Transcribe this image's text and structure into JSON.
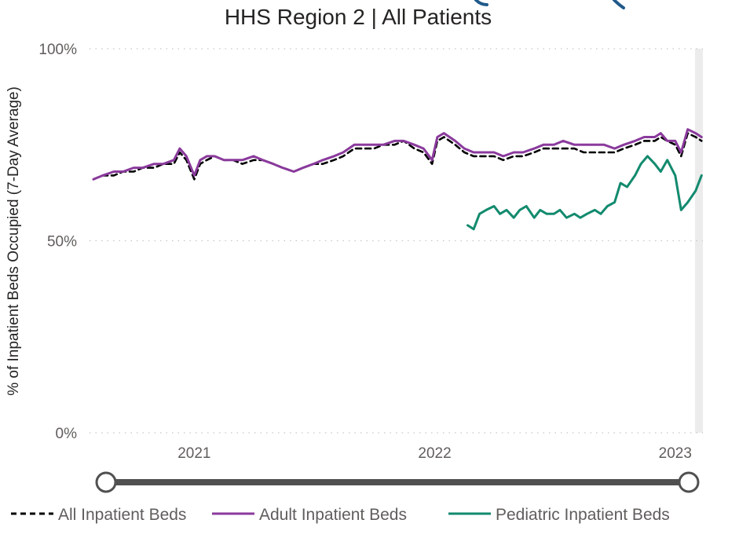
{
  "chart_data": {
    "type": "line",
    "title": "HHS Region 2 | All Patients",
    "ylabel": "% of Inpatient Beds Occupied (7-Day Average)",
    "xlabel": "",
    "ylim": [
      0,
      100
    ],
    "y_ticks": [
      {
        "value": 0,
        "label": "0%"
      },
      {
        "value": 50,
        "label": "50%"
      },
      {
        "value": 100,
        "label": "100%"
      }
    ],
    "x_range": [
      "2020-07-26",
      "2023-02-12"
    ],
    "x_ticks": [
      {
        "value": "2021-01-01",
        "label": "2021"
      },
      {
        "value": "2022-01-01",
        "label": "2022"
      },
      {
        "value": "2023-01-01",
        "label": "2023"
      }
    ],
    "highlight_band": [
      "2023-01-31",
      "2023-02-12"
    ],
    "grid": true,
    "legend_position": "bottom",
    "series": [
      {
        "name": "All Inpatient Beds",
        "color": "#000000",
        "style": "dashed",
        "x": [
          "2020-08-01",
          "2020-08-15",
          "2020-09-01",
          "2020-09-15",
          "2020-10-01",
          "2020-10-15",
          "2020-11-01",
          "2020-11-15",
          "2020-12-01",
          "2020-12-10",
          "2020-12-20",
          "2021-01-01",
          "2021-01-10",
          "2021-01-20",
          "2021-02-01",
          "2021-02-15",
          "2021-03-01",
          "2021-03-15",
          "2021-04-01",
          "2021-04-15",
          "2021-05-01",
          "2021-05-15",
          "2021-06-01",
          "2021-06-15",
          "2021-07-01",
          "2021-07-15",
          "2021-08-01",
          "2021-08-15",
          "2021-09-01",
          "2021-09-15",
          "2021-10-01",
          "2021-10-15",
          "2021-11-01",
          "2021-11-15",
          "2021-12-01",
          "2021-12-15",
          "2021-12-28",
          "2022-01-05",
          "2022-01-15",
          "2022-02-01",
          "2022-02-15",
          "2022-03-01",
          "2022-03-15",
          "2022-04-01",
          "2022-04-15",
          "2022-05-01",
          "2022-05-15",
          "2022-06-01",
          "2022-06-15",
          "2022-07-01",
          "2022-07-15",
          "2022-08-01",
          "2022-08-15",
          "2022-09-01",
          "2022-09-15",
          "2022-10-01",
          "2022-10-15",
          "2022-11-01",
          "2022-11-15",
          "2022-12-01",
          "2022-12-10",
          "2022-12-20",
          "2023-01-01",
          "2023-01-10",
          "2023-01-20",
          "2023-02-01",
          "2023-02-10"
        ],
        "y": [
          66,
          67,
          67,
          68,
          68,
          69,
          69,
          70,
          70,
          73,
          71,
          66,
          70,
          71,
          72,
          71,
          71,
          70,
          71,
          71,
          70,
          69,
          68,
          69,
          70,
          70,
          71,
          72,
          74,
          74,
          74,
          75,
          75,
          76,
          74,
          73,
          70,
          76,
          77,
          75,
          73,
          72,
          72,
          72,
          71,
          72,
          72,
          73,
          74,
          74,
          74,
          74,
          73,
          73,
          73,
          73,
          74,
          75,
          76,
          76,
          77,
          76,
          75,
          72,
          78,
          77,
          76
        ]
      },
      {
        "name": "Adult Inpatient Beds",
        "color": "#8a3a9c",
        "style": "solid",
        "x": [
          "2020-08-01",
          "2020-08-15",
          "2020-09-01",
          "2020-09-15",
          "2020-10-01",
          "2020-10-15",
          "2020-11-01",
          "2020-11-15",
          "2020-12-01",
          "2020-12-10",
          "2020-12-20",
          "2021-01-01",
          "2021-01-10",
          "2021-01-20",
          "2021-02-01",
          "2021-02-15",
          "2021-03-01",
          "2021-03-15",
          "2021-04-01",
          "2021-04-15",
          "2021-05-01",
          "2021-05-15",
          "2021-06-01",
          "2021-06-15",
          "2021-07-01",
          "2021-07-15",
          "2021-08-01",
          "2021-08-15",
          "2021-09-01",
          "2021-09-15",
          "2021-10-01",
          "2021-10-15",
          "2021-11-01",
          "2021-11-15",
          "2021-12-01",
          "2021-12-15",
          "2021-12-28",
          "2022-01-05",
          "2022-01-15",
          "2022-02-01",
          "2022-02-15",
          "2022-03-01",
          "2022-03-15",
          "2022-04-01",
          "2022-04-15",
          "2022-05-01",
          "2022-05-15",
          "2022-06-01",
          "2022-06-15",
          "2022-07-01",
          "2022-07-15",
          "2022-08-01",
          "2022-08-15",
          "2022-09-01",
          "2022-09-15",
          "2022-10-01",
          "2022-10-15",
          "2022-11-01",
          "2022-11-15",
          "2022-12-01",
          "2022-12-10",
          "2022-12-20",
          "2023-01-01",
          "2023-01-10",
          "2023-01-20",
          "2023-02-01",
          "2023-02-10"
        ],
        "y": [
          66,
          67,
          68,
          68,
          69,
          69,
          70,
          70,
          71,
          74,
          72,
          67,
          71,
          72,
          72,
          71,
          71,
          71,
          72,
          71,
          70,
          69,
          68,
          69,
          70,
          71,
          72,
          73,
          75,
          75,
          75,
          75,
          76,
          76,
          75,
          74,
          71,
          77,
          78,
          76,
          74,
          73,
          73,
          73,
          72,
          73,
          73,
          74,
          75,
          75,
          76,
          75,
          75,
          75,
          75,
          74,
          75,
          76,
          77,
          77,
          78,
          76,
          76,
          73,
          79,
          78,
          77
        ]
      },
      {
        "name": "Pediatric Inpatient Beds",
        "color": "#128a6e",
        "style": "solid",
        "x": [
          "2022-02-20",
          "2022-03-01",
          "2022-03-10",
          "2022-03-20",
          "2022-04-01",
          "2022-04-10",
          "2022-04-20",
          "2022-05-01",
          "2022-05-10",
          "2022-05-20",
          "2022-06-01",
          "2022-06-10",
          "2022-06-20",
          "2022-07-01",
          "2022-07-10",
          "2022-07-20",
          "2022-08-01",
          "2022-08-10",
          "2022-08-20",
          "2022-09-01",
          "2022-09-10",
          "2022-09-20",
          "2022-10-01",
          "2022-10-10",
          "2022-10-20",
          "2022-11-01",
          "2022-11-10",
          "2022-11-20",
          "2022-12-01",
          "2022-12-10",
          "2022-12-20",
          "2023-01-01",
          "2023-01-10",
          "2023-01-20",
          "2023-02-01",
          "2023-02-10"
        ],
        "y": [
          54,
          53,
          57,
          58,
          59,
          57,
          58,
          56,
          58,
          59,
          56,
          58,
          57,
          57,
          58,
          56,
          57,
          56,
          57,
          58,
          57,
          59,
          60,
          65,
          64,
          67,
          70,
          72,
          70,
          68,
          71,
          67,
          58,
          60,
          63,
          67
        ]
      }
    ]
  },
  "slider": {
    "track_color": "#505050",
    "handle_color": "#ffffff"
  },
  "decor": {
    "arc_color": "#1f5a8a"
  }
}
